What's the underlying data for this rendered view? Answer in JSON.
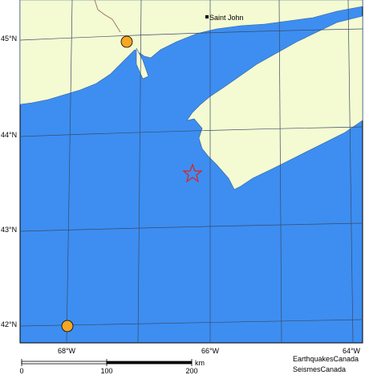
{
  "map": {
    "lat_labels": [
      "45°N",
      "44°N",
      "43°N",
      "42°N"
    ],
    "lon_labels": [
      "68°W",
      "66°W",
      "64°W"
    ],
    "city": "Saint John",
    "scale": {
      "ticks": [
        0,
        100,
        200
      ],
      "unit": "km"
    },
    "credits": [
      "EarthquakesCanada",
      "SeismesCanada"
    ]
  }
}
